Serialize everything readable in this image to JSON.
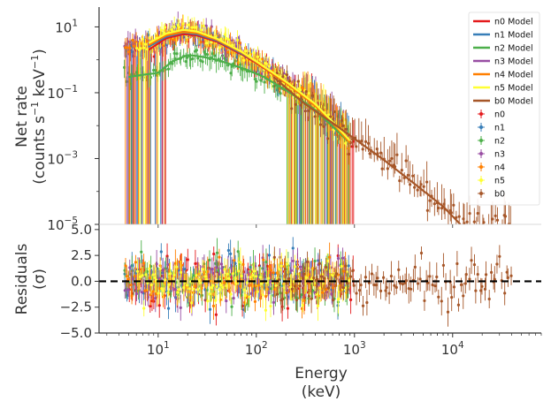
{
  "chart_data": [
    {
      "type": "scatter",
      "panel": "spectrum",
      "xscale": "log",
      "yscale": "log",
      "xlim": [
        2.5,
        80000
      ],
      "ylim": [
        1e-05,
        40
      ],
      "ylabel_lines": [
        "Net rate",
        "(counts s",
        "−1",
        " keV",
        "−1",
        ")"
      ],
      "ytick_labels": [
        {
          "value": 10,
          "base": "10",
          "exp": "1"
        },
        {
          "value": 0.1,
          "base": "10",
          "exp": "−1"
        },
        {
          "value": 0.001,
          "base": "10",
          "exp": "−3"
        },
        {
          "value": 1e-05,
          "base": "10",
          "exp": "−5"
        }
      ],
      "legend_position": "upper right",
      "models": [
        {
          "name": "n0 Model",
          "color": "#e41a1c",
          "points": [
            [
              8,
              2.0
            ],
            [
              12,
              4.5
            ],
            [
              18,
              6.0
            ],
            [
              25,
              5.5
            ],
            [
              40,
              3.5
            ],
            [
              70,
              1.5
            ],
            [
              100,
              0.8
            ],
            [
              200,
              0.2
            ],
            [
              400,
              0.04
            ],
            [
              600,
              0.012
            ],
            [
              900,
              0.003
            ]
          ]
        },
        {
          "name": "n1 Model",
          "color": "#377eb8",
          "points": [
            [
              8,
              2.5
            ],
            [
              12,
              5.0
            ],
            [
              18,
              6.8
            ],
            [
              25,
              6.0
            ],
            [
              40,
              3.8
            ],
            [
              70,
              1.6
            ],
            [
              100,
              0.85
            ],
            [
              200,
              0.2
            ],
            [
              400,
              0.04
            ],
            [
              600,
              0.012
            ],
            [
              900,
              0.003
            ]
          ]
        },
        {
          "name": "n2 Model",
          "color": "#4daf4a",
          "points": [
            [
              5,
              0.3
            ],
            [
              7,
              0.35
            ],
            [
              10,
              0.4
            ],
            [
              14,
              0.9
            ],
            [
              20,
              1.4
            ],
            [
              25,
              1.3
            ],
            [
              35,
              1.1
            ],
            [
              50,
              0.8
            ],
            [
              80,
              0.5
            ],
            [
              120,
              0.3
            ],
            [
              200,
              0.12
            ],
            [
              400,
              0.03
            ],
            [
              700,
              0.006
            ],
            [
              900,
              0.003
            ]
          ]
        },
        {
          "name": "n3 Model",
          "color": "#984ea3",
          "points": [
            [
              8,
              3.0
            ],
            [
              12,
              6.0
            ],
            [
              18,
              8.0
            ],
            [
              25,
              7.0
            ],
            [
              40,
              4.2
            ],
            [
              70,
              1.8
            ],
            [
              100,
              0.9
            ],
            [
              200,
              0.22
            ],
            [
              400,
              0.045
            ],
            [
              600,
              0.013
            ],
            [
              900,
              0.0035
            ]
          ]
        },
        {
          "name": "n4 Model",
          "color": "#ff7f00",
          "points": [
            [
              8,
              2.8
            ],
            [
              12,
              5.5
            ],
            [
              18,
              7.0
            ],
            [
              25,
              6.5
            ],
            [
              40,
              4.0
            ],
            [
              70,
              1.7
            ],
            [
              100,
              0.85
            ],
            [
              200,
              0.2
            ],
            [
              400,
              0.04
            ],
            [
              600,
              0.012
            ],
            [
              900,
              0.003
            ]
          ]
        },
        {
          "name": "n5 Model",
          "color": "#ffff33",
          "points": [
            [
              8,
              3.2
            ],
            [
              12,
              6.2
            ],
            [
              18,
              8.2
            ],
            [
              25,
              7.2
            ],
            [
              40,
              4.3
            ],
            [
              70,
              1.8
            ],
            [
              100,
              0.9
            ],
            [
              200,
              0.22
            ],
            [
              400,
              0.045
            ],
            [
              600,
              0.013
            ],
            [
              900,
              0.0035
            ]
          ]
        },
        {
          "name": "b0 Model",
          "color": "#a65628",
          "points": [
            [
              150,
              0.3
            ],
            [
              300,
              0.05
            ],
            [
              600,
              0.012
            ],
            [
              1000,
              0.004
            ],
            [
              2000,
              0.0009
            ],
            [
              4000,
              0.00018
            ],
            [
              8000,
              3.5e-05
            ],
            [
              12000,
              1e-05
            ]
          ]
        }
      ],
      "data_series": [
        {
          "name": "n0",
          "color": "#e41a1c",
          "x_range": [
            5,
            1000
          ]
        },
        {
          "name": "n1",
          "color": "#377eb8",
          "x_range": [
            4.5,
            900
          ]
        },
        {
          "name": "n2",
          "color": "#4daf4a",
          "x_range": [
            4.5,
            900
          ]
        },
        {
          "name": "n3",
          "color": "#984ea3",
          "x_range": [
            4.5,
            900
          ]
        },
        {
          "name": "n4",
          "color": "#ff7f00",
          "x_range": [
            4.5,
            900
          ]
        },
        {
          "name": "n5",
          "color": "#ffff33",
          "x_range": [
            6,
            900
          ]
        },
        {
          "name": "b0",
          "color": "#a65628",
          "x_range": [
            150,
            40000
          ]
        }
      ]
    },
    {
      "type": "scatter",
      "panel": "residuals",
      "xscale": "log",
      "xlim": [
        2.5,
        80000
      ],
      "ylim": [
        -5,
        5.5
      ],
      "xlabel_lines": [
        "Energy",
        "(keV)"
      ],
      "ylabel_lines": [
        "Residuals",
        "(σ)"
      ],
      "xtick_labels": [
        {
          "value": 10,
          "base": "10",
          "exp": "1"
        },
        {
          "value": 100,
          "base": "10",
          "exp": "2"
        },
        {
          "value": 1000,
          "base": "10",
          "exp": "3"
        },
        {
          "value": 10000,
          "base": "10",
          "exp": "4"
        }
      ],
      "ytick_labels": [
        {
          "value": 5,
          "label": "5.0"
        },
        {
          "value": 2.5,
          "label": "2.5"
        },
        {
          "value": 0,
          "label": "0.0"
        },
        {
          "value": -2.5,
          "label": "−2.5"
        },
        {
          "value": -5,
          "label": "−5.0"
        }
      ],
      "reference_line": {
        "y": 0,
        "style": "dashed",
        "color": "#000000"
      }
    }
  ]
}
